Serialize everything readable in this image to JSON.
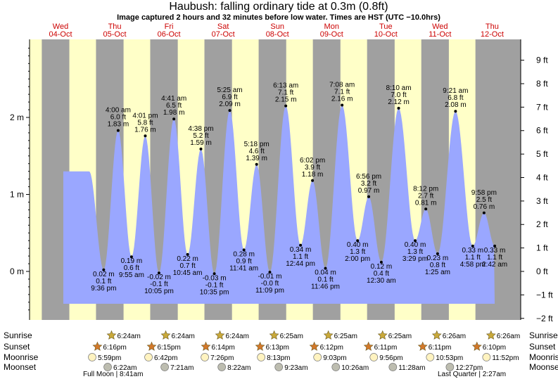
{
  "header": {
    "title": "Haubush: falling  ordinary tide at 0.3m (0.8ft)",
    "subtitle": "Image captured 2 hours and 32 minutes before low water. Times are HST (UTC −10.0hrs)"
  },
  "colors": {
    "day_bg": "#ffffc8",
    "night_bg": "#a0a0a0",
    "tide_fill": "#9aa7ff",
    "text": "#000000",
    "day_label": "#cc0000"
  },
  "chart_data": {
    "type": "area",
    "title": "Haubush: falling  ordinary tide at 0.3m (0.8ft)",
    "y_m_ticks": [
      "0 m",
      "1 m",
      "2 m"
    ],
    "y_ft_ticks": [
      "−2 ft",
      "−1 ft",
      "0 ft",
      "1 ft",
      "2 ft",
      "3 ft",
      "4 ft",
      "5 ft",
      "6 ft",
      "7 ft",
      "8 ft",
      "9 ft"
    ],
    "ylim_m": [
      -0.55,
      3.0
    ],
    "days": [
      {
        "name": "Wed",
        "date": "04-Oct"
      },
      {
        "name": "Thu",
        "date": "05-Oct"
      },
      {
        "name": "Fri",
        "date": "06-Oct"
      },
      {
        "name": "Sat",
        "date": "07-Oct"
      },
      {
        "name": "Sun",
        "date": "08-Oct"
      },
      {
        "name": "Mon",
        "date": "09-Oct"
      },
      {
        "name": "Tue",
        "date": "10-Oct"
      },
      {
        "name": "Wed",
        "date": "11-Oct"
      },
      {
        "name": "Thu",
        "date": "12-Oct"
      }
    ],
    "tide_events": [
      {
        "time": "9:36 pm",
        "m": "0.02 m",
        "ft": "0.1 ft",
        "day": 0,
        "hour": 21.6,
        "val": 0.02,
        "kind": "low"
      },
      {
        "time": "4:00 am",
        "m": "1.83 m",
        "ft": "6.0 ft",
        "day": 1,
        "hour": 4.0,
        "val": 1.83,
        "kind": "high"
      },
      {
        "time": "9:55 am",
        "m": "0.19 m",
        "ft": "0.6 ft",
        "day": 1,
        "hour": 9.917,
        "val": 0.19,
        "kind": "low"
      },
      {
        "time": "4:01 pm",
        "m": "1.76 m",
        "ft": "5.8 ft",
        "day": 1,
        "hour": 16.017,
        "val": 1.76,
        "kind": "high"
      },
      {
        "time": "10:05 pm",
        "m": "-0.02 m",
        "ft": "-0.1 ft",
        "day": 1,
        "hour": 22.083,
        "val": -0.02,
        "kind": "low"
      },
      {
        "time": "4:41 am",
        "m": "1.98 m",
        "ft": "6.5 ft",
        "day": 2,
        "hour": 4.683,
        "val": 1.98,
        "kind": "high"
      },
      {
        "time": "10:45 am",
        "m": "0.22 m",
        "ft": "0.7 ft",
        "day": 2,
        "hour": 10.75,
        "val": 0.22,
        "kind": "low"
      },
      {
        "time": "4:38 pm",
        "m": "1.59 m",
        "ft": "5.2 ft",
        "day": 2,
        "hour": 16.633,
        "val": 1.59,
        "kind": "high"
      },
      {
        "time": "10:35 pm",
        "m": "-0.03 m",
        "ft": "-0.1 ft",
        "day": 2,
        "hour": 22.583,
        "val": -0.03,
        "kind": "low"
      },
      {
        "time": "5:25 am",
        "m": "2.09 m",
        "ft": "6.9 ft",
        "day": 3,
        "hour": 5.417,
        "val": 2.09,
        "kind": "high"
      },
      {
        "time": "11:41 am",
        "m": "0.28 m",
        "ft": "0.9 ft",
        "day": 3,
        "hour": 11.683,
        "val": 0.28,
        "kind": "low"
      },
      {
        "time": "5:18 pm",
        "m": "1.39 m",
        "ft": "4.6 ft",
        "day": 3,
        "hour": 17.3,
        "val": 1.39,
        "kind": "high"
      },
      {
        "time": "11:09 pm",
        "m": "-0.01 m",
        "ft": "-0.0 ft",
        "day": 3,
        "hour": 23.15,
        "val": -0.01,
        "kind": "low"
      },
      {
        "time": "6:13 am",
        "m": "2.15 m",
        "ft": "7.1 ft",
        "day": 4,
        "hour": 6.217,
        "val": 2.15,
        "kind": "high"
      },
      {
        "time": "12:44 pm",
        "m": "0.34 m",
        "ft": "1.1 ft",
        "day": 4,
        "hour": 12.733,
        "val": 0.34,
        "kind": "low"
      },
      {
        "time": "6:02 pm",
        "m": "1.18 m",
        "ft": "3.9 ft",
        "day": 4,
        "hour": 18.033,
        "val": 1.18,
        "kind": "high"
      },
      {
        "time": "11:46 pm",
        "m": "0.04 m",
        "ft": "0.1 ft",
        "day": 4,
        "hour": 23.767,
        "val": 0.04,
        "kind": "low"
      },
      {
        "time": "7:08 am",
        "m": "2.16 m",
        "ft": "7.1 ft",
        "day": 5,
        "hour": 7.133,
        "val": 2.16,
        "kind": "high"
      },
      {
        "time": "2:00 pm",
        "m": "0.40 m",
        "ft": "1.3 ft",
        "day": 5,
        "hour": 14.0,
        "val": 0.4,
        "kind": "low"
      },
      {
        "time": "6:56 pm",
        "m": "0.97 m",
        "ft": "3.2 ft",
        "day": 5,
        "hour": 18.933,
        "val": 0.97,
        "kind": "high"
      },
      {
        "time": "12:30 am",
        "m": "0.12 m",
        "ft": "0.4 ft",
        "day": 6,
        "hour": 0.5,
        "val": 0.12,
        "kind": "low"
      },
      {
        "time": "8:10 am",
        "m": "2.12 m",
        "ft": "7.0 ft",
        "day": 6,
        "hour": 8.167,
        "val": 2.12,
        "kind": "high"
      },
      {
        "time": "3:29 pm",
        "m": "0.40 m",
        "ft": "1.3 ft",
        "day": 6,
        "hour": 15.483,
        "val": 0.4,
        "kind": "low"
      },
      {
        "time": "8:12 pm",
        "m": "0.81 m",
        "ft": "2.7 ft",
        "day": 6,
        "hour": 20.2,
        "val": 0.81,
        "kind": "high"
      },
      {
        "time": "1:25 am",
        "m": "0.23 m",
        "ft": "0.8 ft",
        "day": 7,
        "hour": 1.417,
        "val": 0.23,
        "kind": "low"
      },
      {
        "time": "9:21 am",
        "m": "2.08 m",
        "ft": "6.8 ft",
        "day": 7,
        "hour": 9.35,
        "val": 2.08,
        "kind": "high"
      },
      {
        "time": "4:58 pm",
        "m": "0.33 m",
        "ft": "1.1 ft",
        "day": 7,
        "hour": 16.967,
        "val": 0.33,
        "kind": "low"
      },
      {
        "time": "9:58 pm",
        "m": "0.76 m",
        "ft": "2.5 ft",
        "day": 7,
        "hour": 21.967,
        "val": 0.76,
        "kind": "high"
      },
      {
        "time": "2:42 am",
        "m": "0.33 m",
        "ft": "1.1 ft",
        "day": 8,
        "hour": 2.7,
        "val": 0.33,
        "kind": "low"
      }
    ],
    "rows": {
      "sunrise": {
        "label": "Sunrise",
        "times": [
          "6:24am",
          "6:24am",
          "6:24am",
          "6:25am",
          "6:25am",
          "6:25am",
          "6:26am",
          "6:26am"
        ]
      },
      "sunset": {
        "label": "Sunset",
        "times": [
          "6:16pm",
          "6:15pm",
          "6:14pm",
          "6:13pm",
          "6:12pm",
          "6:11pm",
          "6:11pm",
          "6:10pm"
        ]
      },
      "moonrise": {
        "label": "Moonrise",
        "times": [
          "5:59pm",
          "6:42pm",
          "7:26pm",
          "8:13pm",
          "9:03pm",
          "9:56pm",
          "10:53pm",
          "11:52pm"
        ]
      },
      "moonset": {
        "label": "Moonset",
        "times": [
          "6:22am",
          "7:21am",
          "8:22am",
          "9:23am",
          "10:26am",
          "11:28am",
          "12:27pm"
        ]
      }
    },
    "moon_phases": [
      "Full Moon | 8:41am",
      "Last Quarter | 2:27am"
    ]
  }
}
